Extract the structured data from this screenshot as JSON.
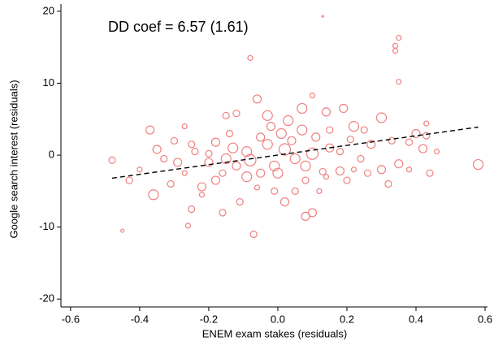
{
  "chart_data": {
    "type": "scatter",
    "annotation": "DD coef = 6.57 (1.61)",
    "xlabel": "ENEM exam stakes (residuals)",
    "ylabel": "Google search interest (residuals)",
    "color": "#f08080",
    "fit_color": "#000000",
    "xlim": [
      -0.628,
      0.607
    ],
    "ylim": [
      -21.1,
      21.0
    ],
    "xticks": [
      -0.6,
      -0.4,
      -0.2,
      {
        "value": 0,
        "label": "0.0"
      },
      0.2,
      0.4,
      0.6
    ],
    "yticks": [
      -20,
      -10,
      0,
      10,
      20
    ],
    "x": [
      0.13,
      0.35,
      0.34,
      0.34,
      0.35,
      -0.08,
      -0.45,
      -0.07,
      0.1,
      0.08,
      -0.26,
      -0.16,
      0.02,
      0.14,
      0.58,
      -0.48,
      -0.37,
      -0.43,
      -0.36,
      -0.22,
      -0.2,
      -0.15,
      -0.12,
      -0.06,
      -0.03,
      0.07,
      0.1,
      0.14,
      0.19,
      0.22,
      0.25,
      0.3,
      0.33,
      0.4,
      0.42,
      0.44,
      0.43,
      0.38,
      0.35,
      0.3,
      0.26,
      0.22,
      0.18,
      0.13,
      0.08,
      0.05,
      0.02,
      -0.01,
      -0.05,
      -0.09,
      -0.12,
      -0.16,
      -0.2,
      -0.24,
      -0.27,
      -0.29,
      -0.33,
      -0.3,
      -0.25,
      -0.18,
      -0.13,
      -0.09,
      -0.05,
      -0.02,
      0.01,
      0.04,
      0.07,
      0.11,
      0.15,
      0.18,
      0.21,
      0.27,
      -0.01,
      -0.06,
      0.05,
      -0.11,
      -0.22,
      -0.25,
      0.08,
      0.12,
      -0.35,
      -0.4,
      -0.31,
      0.32,
      0.38,
      0.46,
      0.43,
      -0.27,
      -0.18,
      0.0,
      0.03,
      -0.08,
      0.1,
      -0.15,
      0.2,
      0.24,
      -0.14,
      0.15,
      -0.03
    ],
    "values": [
      19.3,
      16.3,
      15.2,
      14.5,
      10.2,
      13.5,
      -10.5,
      -11,
      -8,
      -8.5,
      -9.8,
      -8,
      -6.5,
      -3,
      -1.3,
      -0.7,
      3.5,
      -3.5,
      -5.5,
      -4.4,
      0.2,
      5.5,
      5.8,
      7.8,
      5.5,
      6.5,
      8.3,
      6,
      6.5,
      4,
      3.5,
      5.2,
      2,
      3,
      0.9,
      -2.5,
      2.7,
      1.8,
      -1.2,
      -2,
      -2.5,
      -2,
      -2.2,
      -2.3,
      -1.5,
      -0.5,
      0.8,
      -1.5,
      -2.5,
      -3,
      -1.5,
      -2.5,
      -1,
      0.5,
      -2.5,
      -1,
      -0.5,
      2,
      1.5,
      1.8,
      1,
      0.5,
      2.5,
      4,
      3,
      2,
      3.5,
      2.5,
      1,
      0.5,
      2.2,
      1.5,
      -5,
      -4.5,
      -5,
      -6.5,
      -5.5,
      -7.5,
      -3.5,
      -5,
      0.8,
      -2,
      -4,
      -4,
      -2,
      0.5,
      4.4,
      4,
      -3.5,
      -2.5,
      4.8,
      -0.7,
      0.2,
      -0.5,
      -3.5,
      -0.5,
      3,
      3.5,
      1.5
    ],
    "sizes": [
      1,
      3,
      3,
      3,
      3,
      3,
      2,
      4,
      5,
      5,
      3,
      4,
      5,
      3,
      6,
      4,
      5,
      4,
      6,
      5,
      4,
      4,
      4,
      5,
      6,
      6,
      3,
      5,
      5,
      6,
      4,
      6,
      4,
      5,
      5,
      4,
      4,
      4,
      5,
      5,
      4,
      3,
      5,
      4,
      6,
      6,
      7,
      6,
      5,
      6,
      5,
      4,
      5,
      4,
      3,
      5,
      4,
      4,
      4,
      5,
      6,
      6,
      5,
      5,
      6,
      5,
      6,
      5,
      5,
      4,
      4,
      5,
      4,
      3,
      4,
      4,
      3,
      4,
      4,
      3,
      5,
      3,
      4,
      4,
      3,
      3,
      3,
      3,
      5,
      6,
      6,
      7,
      7,
      6,
      4,
      4,
      4,
      4,
      6
    ],
    "fit": {
      "x": [
        -0.48,
        0.58
      ],
      "values": [
        -3.2,
        3.9
      ]
    }
  }
}
